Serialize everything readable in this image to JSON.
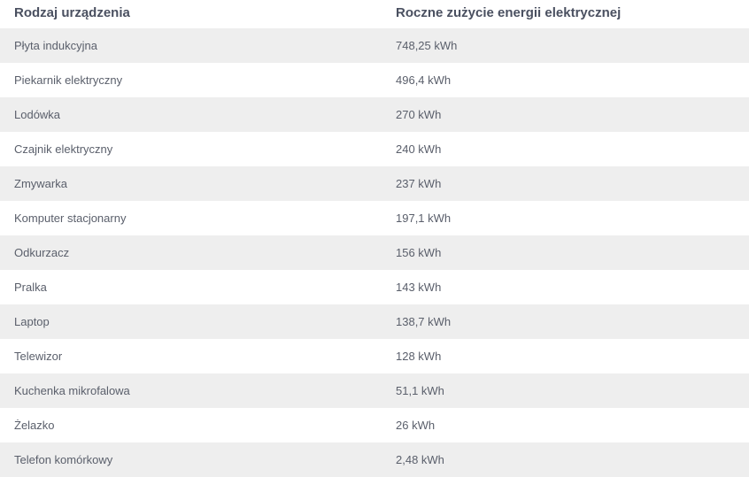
{
  "table": {
    "headers": [
      "Rodzaj urządzenia",
      "Roczne zużycie energii elektrycznej"
    ],
    "rows": [
      [
        "Płyta indukcyjna",
        "748,25 kWh"
      ],
      [
        "Piekarnik elektryczny",
        "496,4 kWh"
      ],
      [
        "Lodówka",
        "270 kWh"
      ],
      [
        "Czajnik elektryczny",
        "240 kWh"
      ],
      [
        "Zmywarka",
        "237 kWh"
      ],
      [
        "Komputer stacjonarny",
        "197,1 kWh"
      ],
      [
        "Odkurzacz",
        "156 kWh"
      ],
      [
        "Pralka",
        "143 kWh"
      ],
      [
        "Laptop",
        "138,7 kWh"
      ],
      [
        "Telewizor",
        "128 kWh"
      ],
      [
        "Kuchenka mikrofalowa",
        "51,1 kWh"
      ],
      [
        "Żelazko",
        "26 kWh"
      ],
      [
        "Telefon komórkowy",
        "2,48 kWh"
      ]
    ]
  }
}
